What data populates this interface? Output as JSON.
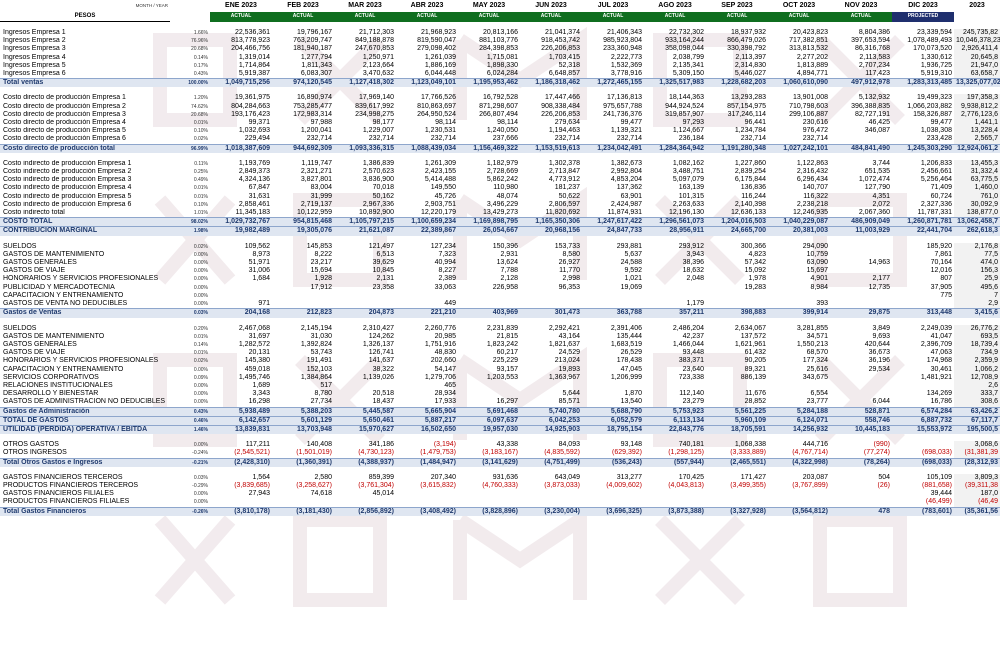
{
  "header": {
    "month_year_label": "MONTH / YEAR",
    "pesos_label": "PESOS",
    "months": [
      "ENE 2023",
      "FEB 2023",
      "MAR 2023",
      "ABR 2023",
      "MAY 2023",
      "JUN 2023",
      "JUL 2023",
      "AGO 2023",
      "SEP 2023",
      "OCT 2023",
      "NOV 2023",
      "DIC 2023",
      "2023"
    ],
    "status": [
      "ACTUAL",
      "ACTUAL",
      "ACTUAL",
      "ACTUAL",
      "ACTUAL",
      "ACTUAL",
      "ACTUAL",
      "ACTUAL",
      "ACTUAL",
      "ACTUAL",
      "ACTUAL",
      "PROJECTED",
      ""
    ]
  },
  "rows": [
    {
      "type": "sp"
    },
    {
      "label": "Ingresos Empresa 1",
      "pct": "1.66%",
      "v": [
        "22,536,361",
        "19,796,167",
        "21,712,303",
        "21,968,923",
        "20,813,166",
        "21,041,374",
        "21,406,343",
        "22,732,302",
        "18,937,932",
        "20,423,823",
        "8,804,386",
        "23,339,594",
        "245,735,82"
      ]
    },
    {
      "label": "Ingresos Empresa 2",
      "pct": "76.96%",
      "v": [
        "813,778,923",
        "763,209,747",
        "849,188,878",
        "819,590,047",
        "881,103,776",
        "918,453,742",
        "985,923,804",
        "933,164,244",
        "866,479,026",
        "717,382,851",
        "397,653,594",
        "1,078,489,493",
        "10,046,378,23"
      ]
    },
    {
      "label": "Ingresos Empresa 3",
      "pct": "20.68%",
      "v": [
        "204,466,756",
        "181,940,187",
        "247,670,853",
        "279,098,402",
        "284,398,853",
        "226,206,853",
        "233,360,948",
        "358,098,044",
        "330,398,792",
        "313,813,532",
        "86,316,768",
        "170,073,520",
        "2,926,411,4"
      ]
    },
    {
      "label": "Ingresos Empresa 4",
      "pct": "0.14%",
      "v": [
        "1,319,014",
        "1,277,794",
        "1,250,971",
        "1,261,039",
        "1,715,081",
        "1,703,415",
        "2,222,773",
        "2,038,799",
        "2,113,397",
        "2,277,202",
        "2,113,583",
        "1,330,612",
        "20,645,8"
      ]
    },
    {
      "label": "Ingresos Empresa 5",
      "pct": "0.17%",
      "v": [
        "1,714,864",
        "1,811,343",
        "2,123,664",
        "1,886,169",
        "1,898,330",
        "52,318",
        "1,532,369",
        "2,135,341",
        "2,314,830",
        "1,813,889",
        "2,707,234",
        "1,936,725",
        "21,947,0"
      ]
    },
    {
      "label": "Ingresos Empresa 6",
      "pct": "0.43%",
      "v": [
        "5,919,387",
        "6,083,307",
        "3,470,632",
        "6,044,448",
        "6,024,284",
        "6,648,857",
        "3,778,916",
        "5,309,150",
        "5,446,027",
        "4,894,771",
        "117,423",
        "5,919,310",
        "63,658,7"
      ]
    },
    {
      "label": "Total ventas",
      "pct": "100.00%",
      "cls": "total",
      "v": [
        "1,049,715,256",
        "974,120,545",
        "1,127,418,302",
        "1,123,049,101",
        "1,195,953,462",
        "1,186,318,462",
        "1,272,465,155",
        "1,325,517,983",
        "1,228,682,203",
        "1,060,610,090",
        "497,912,978",
        "1,283,313,485",
        "13,325,077,02"
      ]
    },
    {
      "type": "sp"
    },
    {
      "label": "Costo directo de producción Empresa 1",
      "pct": "1.20%",
      "v": [
        "19,361,975",
        "16,890,974",
        "17,969,140",
        "17,766,526",
        "16,792,528",
        "17,447,466",
        "17,136,813",
        "18,144,363",
        "13,293,283",
        "13,901,008",
        "5,132,932",
        "19,499,323",
        "197,358,3"
      ]
    },
    {
      "label": "Costo directo de producción Empresa 2",
      "pct": "74.62%",
      "v": [
        "804,284,663",
        "753,285,477",
        "839,617,992",
        "810,863,697",
        "871,298,607",
        "908,338,484",
        "975,657,788",
        "944,924,524",
        "857,154,975",
        "710,798,603",
        "396,388,835",
        "1,066,203,882",
        "9,938,812,2"
      ]
    },
    {
      "label": "Costo directo de producción Empresa 3",
      "pct": "20.68%",
      "v": [
        "193,176,423",
        "172,983,314",
        "234,998,275",
        "264,950,524",
        "266,807,494",
        "226,206,853",
        "241,736,376",
        "319,857,907",
        "317,246,114",
        "299,106,887",
        "82,727,191",
        "158,326,887",
        "2,776,123,6"
      ]
    },
    {
      "label": "Costo directo de producción Empresa 4",
      "pct": "0.01%",
      "v": [
        "99,371",
        "97,988",
        "98,177",
        "98,114",
        "98,114",
        "279,634",
        "99,477",
        "97,293",
        "96,441",
        "230,616",
        "46,425",
        "99,477",
        "1,441,1"
      ]
    },
    {
      "label": "Costo directo de producción Empresa 5",
      "pct": "0.10%",
      "v": [
        "1,032,693",
        "1,200,041",
        "1,229,007",
        "1,230,531",
        "1,240,050",
        "1,194,463",
        "1,139,321",
        "1,124,667",
        "1,234,784",
        "976,472",
        "346,087",
        "1,038,308",
        "13,228,4"
      ]
    },
    {
      "label": "Costo directo de producción Empresa 6",
      "pct": "0.02%",
      "v": [
        "229,494",
        "232,714",
        "232,714",
        "232,714",
        "237,666",
        "232,714",
        "232,714",
        "236,184",
        "232,714",
        "232,714",
        "",
        "233,428",
        "2,565,7"
      ]
    },
    {
      "label": "Costo directo de producción total",
      "pct": "96.99%",
      "cls": "total",
      "v": [
        "1,018,387,609",
        "944,692,309",
        "1,093,336,315",
        "1,088,439,034",
        "1,156,469,322",
        "1,153,519,613",
        "1,234,042,491",
        "1,284,364,942",
        "1,191,280,348",
        "1,027,242,101",
        "484,841,490",
        "1,245,303,290",
        "12,924,061,2"
      ]
    },
    {
      "type": "sp"
    },
    {
      "label": "Costo indirecto de producción Empresa 1",
      "pct": "0.11%",
      "v": [
        "1,193,769",
        "1,119,747",
        "1,386,839",
        "1,261,309",
        "1,182,979",
        "1,302,378",
        "1,382,673",
        "1,082,162",
        "1,227,860",
        "1,122,863",
        "3,744",
        "1,206,833",
        "13,455,3"
      ]
    },
    {
      "label": "Costo indirecto de producción Empresa 2",
      "pct": "0.25%",
      "v": [
        "2,849,373",
        "2,321,271",
        "2,570,623",
        "2,423,155",
        "2,728,669",
        "2,713,847",
        "2,992,804",
        "3,488,751",
        "2,839,254",
        "2,316,432",
        "651,535",
        "2,456,661",
        "31,332,4"
      ]
    },
    {
      "label": "Costo indirecto de producción Empresa 3",
      "pct": "0.49%",
      "v": [
        "4,324,136",
        "3,827,801",
        "3,836,900",
        "5,414,488",
        "5,862,242",
        "4,773,912",
        "4,853,204",
        "5,097,079",
        "6,175,844",
        "6,296,434",
        "1,072,474",
        "5,256,464",
        "63,775,5"
      ]
    },
    {
      "label": "Costo indirecto de producción Empresa 4",
      "pct": "0.01%",
      "v": [
        "67,847",
        "83,004",
        "70,018",
        "149,550",
        "110,980",
        "181,237",
        "137,362",
        "163,139",
        "136,836",
        "140,707",
        "127,790",
        "71,409",
        "1,460,0"
      ]
    },
    {
      "label": "Costo indirecto de producción Empresa 5",
      "pct": "0.01%",
      "v": [
        "31,631",
        "31,999",
        "50,162",
        "45,726",
        "48,074",
        "50,622",
        "63,901",
        "101,315",
        "116,244",
        "116,322",
        "4,351",
        "60,724",
        "761,0"
      ]
    },
    {
      "label": "Costo indirecto de producción Empresa 6",
      "pct": "0.10%",
      "v": [
        "2,858,461",
        "2,719,137",
        "2,967,336",
        "2,903,751",
        "3,496,229",
        "2,806,597",
        "2,424,987",
        "2,263,633",
        "2,140,398",
        "2,238,218",
        "2,072",
        "2,327,336",
        "30,092,9"
      ]
    },
    {
      "label": "Costo indirecto total",
      "pct": "1.01%",
      "v": [
        "11,345,183",
        "10,122,959",
        "10,892,900",
        "12,220,179",
        "13,429,273",
        "11,820,692",
        "11,874,931",
        "12,196,130",
        "12,636,133",
        "12,246,935",
        "2,067,360",
        "11,787,331",
        "138,877,0"
      ]
    },
    {
      "label": "COSTO TOTAL",
      "pct": "98.02%",
      "cls": "total",
      "v": [
        "1,029,732,767",
        "954,815,468",
        "1,105,797,215",
        "1,100,659,234",
        "1,169,898,795",
        "1,165,350,306",
        "1,247,617,422",
        "1,296,561,073",
        "1,204,016,503",
        "1,040,229,087",
        "486,909,049",
        "1,260,871,781",
        "13,062,458,7"
      ]
    },
    {
      "label": "CONTRIBUCIÓN MARGINAL",
      "pct": "1.98%",
      "cls": "total",
      "v": [
        "19,982,489",
        "19,305,076",
        "21,621,087",
        "22,389,867",
        "26,054,667",
        "20,968,156",
        "24,847,733",
        "28,956,911",
        "24,665,700",
        "20,381,003",
        "11,003,929",
        "22,441,704",
        "262,618,3"
      ]
    },
    {
      "type": "sp"
    },
    {
      "label": "SUELDOS",
      "pct": "0.02%",
      "v": [
        "109,562",
        "145,853",
        "121,497",
        "127,234",
        "150,396",
        "153,733",
        "293,881",
        "293,912",
        "300,366",
        "294,090",
        "",
        "185,920",
        "2,176,8"
      ]
    },
    {
      "label": "GASTOS DE MANTENIMIENTO",
      "pct": "0.00%",
      "v": [
        "8,973",
        "8,222",
        "6,513",
        "7,323",
        "2,931",
        "8,580",
        "5,637",
        "3,943",
        "4,823",
        "10,759",
        "",
        "7,861",
        "77,5"
      ]
    },
    {
      "label": "GASTOS GENERALES",
      "pct": "0.00%",
      "v": [
        "51,971",
        "23,217",
        "39,629",
        "40,994",
        "13,624",
        "26,927",
        "24,588",
        "38,396",
        "57,342",
        "63,090",
        "14,963",
        "70,164",
        "474,0"
      ]
    },
    {
      "label": "GASTOS DE VIAJE",
      "pct": "0.00%",
      "v": [
        "31,006",
        "15,694",
        "10,845",
        "8,227",
        "7,788",
        "11,770",
        "9,592",
        "18,632",
        "15,092",
        "15,697",
        "",
        "12,016",
        "156,3"
      ]
    },
    {
      "label": "HONORARIOS Y SERVICIOS PROFESIONALES",
      "pct": "0.00%",
      "v": [
        "1,684",
        "1,928",
        "2,131",
        "2,389",
        "2,128",
        "2,998",
        "1,021",
        "2,048",
        "1,978",
        "4,901",
        "2,177",
        "807",
        "25,9"
      ]
    },
    {
      "label": "PUBLICIDAD Y MERCADOTECNIA",
      "pct": "0.00%",
      "v": [
        "",
        "17,912",
        "23,358",
        "33,063",
        "226,958",
        "96,353",
        "19,069",
        "",
        "19,283",
        "8,984",
        "12,735",
        "37,905",
        "495,6"
      ]
    },
    {
      "label": "CAPACITACIÓN Y ENTRENAMIENTO",
      "pct": "0.00%",
      "v": [
        "",
        "",
        "",
        "",
        "",
        "",
        "",
        "",
        "",
        "",
        "",
        "775",
        "7"
      ]
    },
    {
      "label": "GASTOS DE VENTA NO DEDUCIBLES",
      "pct": "0.00%",
      "v": [
        "971",
        "",
        "",
        "449",
        "",
        "",
        "",
        "1,179",
        "",
        "393",
        "",
        "",
        "2,9"
      ]
    },
    {
      "label": "Gastos de Ventas",
      "pct": "0.03%",
      "cls": "total",
      "v": [
        "204,168",
        "212,823",
        "204,873",
        "221,210",
        "403,969",
        "301,473",
        "363,788",
        "357,211",
        "398,883",
        "399,914",
        "29,875",
        "313,448",
        "3,415,6"
      ]
    },
    {
      "type": "sp"
    },
    {
      "label": "SUELDOS",
      "pct": "0.20%",
      "v": [
        "2,467,068",
        "2,145,194",
        "2,310,427",
        "2,260,776",
        "2,231,839",
        "2,292,421",
        "2,391,406",
        "2,486,204",
        "2,634,067",
        "3,281,855",
        "3,849",
        "2,249,039",
        "26,776,2"
      ]
    },
    {
      "label": "GASTOS DE MANTENIMIENTO",
      "pct": "0.01%",
      "v": [
        "31,697",
        "31,030",
        "124,262",
        "20,985",
        "21,815",
        "43,164",
        "135,444",
        "42,237",
        "137,572",
        "34,571",
        "9,693",
        "41,047",
        "693,5"
      ]
    },
    {
      "label": "GASTOS GENERALES",
      "pct": "0.14%",
      "v": [
        "1,282,572",
        "1,392,824",
        "1,326,137",
        "1,751,916",
        "1,823,242",
        "1,821,637",
        "1,683,519",
        "1,466,044",
        "1,621,961",
        "1,550,213",
        "420,644",
        "2,396,709",
        "18,739,4"
      ]
    },
    {
      "label": "GASTOS DE VIAJE",
      "pct": "0.01%",
      "v": [
        "20,131",
        "53,743",
        "126,741",
        "48,830",
        "60,217",
        "24,529",
        "26,529",
        "93,448",
        "61,432",
        "68,570",
        "36,673",
        "47,063",
        "734,9"
      ]
    },
    {
      "label": "HONORARIOS Y SERVICIOS PROFESIONALES",
      "pct": "0.02%",
      "v": [
        "145,380",
        "191,491",
        "141,637",
        "202,660",
        "225,229",
        "213,024",
        "178,438",
        "383,371",
        "90,205",
        "177,324",
        "36,196",
        "174,968",
        "2,359,9"
      ]
    },
    {
      "label": "CAPACITACIÓN Y ENTRENAMIENTO",
      "pct": "0.00%",
      "v": [
        "459,018",
        "152,103",
        "38,322",
        "54,147",
        "93,157",
        "19,893",
        "47,045",
        "23,640",
        "89,321",
        "25,616",
        "29,534",
        "30,461",
        "1,066,2"
      ]
    },
    {
      "label": "SERVICIOS CORPORATIVOS",
      "pct": "0.09%",
      "v": [
        "1,495,746",
        "1,384,864",
        "1,139,026",
        "1,279,706",
        "1,203,553",
        "1,363,967",
        "1,206,999",
        "723,338",
        "886,139",
        "343,675",
        "",
        "1,481,921",
        "12,708,9"
      ]
    },
    {
      "label": "RELACIONES INSTITUCIONALES",
      "pct": "0.00%",
      "v": [
        "1,689",
        "517",
        "",
        "465",
        "",
        "",
        "",
        "",
        "",
        "",
        "",
        "",
        "2,6"
      ]
    },
    {
      "label": "DESARROLLO Y BIENESTAR",
      "pct": "0.00%",
      "v": [
        "3,343",
        "8,780",
        "20,518",
        "28,934",
        "",
        "5,644",
        "1,870",
        "112,140",
        "11,676",
        "6,554",
        "",
        "134,269",
        "333,7"
      ]
    },
    {
      "label": "GASTOS DE ADMINISTRACIÓN NO DEDUCIBLES",
      "pct": "0.00%",
      "v": [
        "16,298",
        "27,734",
        "18,437",
        "17,933",
        "16,297",
        "85,571",
        "13,540",
        "23,279",
        "28,852",
        "23,777",
        "6,044",
        "16,786",
        "308,6"
      ]
    },
    {
      "label": "Gastos de Administración",
      "pct": "0.43%",
      "cls": "total",
      "v": [
        "5,938,489",
        "5,388,203",
        "5,445,587",
        "5,665,904",
        "5,691,468",
        "5,740,780",
        "5,688,790",
        "5,753,923",
        "5,561,225",
        "5,284,188",
        "528,871",
        "6,574,284",
        "63,426,2"
      ]
    },
    {
      "label": "TOTAL DE GASTOS",
      "pct": "0.46%",
      "cls": "total",
      "v": [
        "6,142,657",
        "5,601,129",
        "5,650,461",
        "5,887,217",
        "6,097,637",
        "6,042,253",
        "6,052,579",
        "6,113,134",
        "5,960,109",
        "6,124,071",
        "558,746",
        "6,887,732",
        "67,117,7"
      ]
    },
    {
      "label": "UTILIDAD (PÉRDIDA) OPERATIVA / EBITDA",
      "pct": "1.46%",
      "cls": "total",
      "v": [
        "13,839,831",
        "13,703,948",
        "15,970,627",
        "16,502,650",
        "19,957,030",
        "14,925,903",
        "18,795,154",
        "22,843,776",
        "18,705,591",
        "14,256,932",
        "10,445,183",
        "15,553,972",
        "195,500,5"
      ]
    },
    {
      "type": "sp"
    },
    {
      "label": "OTROS GASTOS",
      "pct": "0.00%",
      "v": [
        "117,211",
        "140,408",
        "341,186",
        "(3,194)",
        "43,338",
        "84,093",
        "93,148",
        "740,181",
        "1,068,338",
        "444,716",
        "(990)",
        "",
        "3,068,6"
      ]
    },
    {
      "label": "OTROS INGRESOS",
      "pct": "-0.24%",
      "v": [
        "(2,545,521)",
        "(1,501,019)",
        "(4,730,123)",
        "(1,479,753)",
        "(3,183,167)",
        "(4,835,592)",
        "(629,392)",
        "(1,298,125)",
        "(3,333,889)",
        "(4,767,714)",
        "(77,274)",
        "(698,033)",
        "(31,381,39"
      ]
    },
    {
      "label": "Total Otros Gastos e Ingresos",
      "pct": "-0.21%",
      "cls": "total",
      "v": [
        "(2,428,310)",
        "(1,360,391)",
        "(4,388,937)",
        "(1,484,947)",
        "(3,141,629)",
        "(4,751,499)",
        "(536,243)",
        "(557,944)",
        "(2,465,551)",
        "(4,322,998)",
        "(78,264)",
        "(698,033)",
        "(28,312,93"
      ]
    },
    {
      "type": "sp"
    },
    {
      "label": "GASTOS FINANCIEROS TERCEROS",
      "pct": "0.03%",
      "v": [
        "1,564",
        "2,580",
        "859,399",
        "207,340",
        "931,636",
        "643,049",
        "313,277",
        "170,425",
        "171,427",
        "203,087",
        "504",
        "105,109",
        "3,809,3"
      ]
    },
    {
      "label": "PRODUCTOS FINANCIEROS TERCEROS",
      "pct": "-0.29%",
      "v": [
        "(3,839,685)",
        "(3,258,627)",
        "(3,761,304)",
        "(3,615,832)",
        "(4,760,333)",
        "(3,873,033)",
        "(4,009,602)",
        "(4,043,813)",
        "(3,499,355)",
        "(3,767,899)",
        "(26)",
        "(881,658)",
        "(39,311,38"
      ]
    },
    {
      "label": "GASTOS FINANCIEROS FILIALES",
      "pct": "0.00%",
      "v": [
        "27,943",
        "74,618",
        "45,014",
        "",
        "",
        "",
        "",
        "",
        "",
        "",
        "",
        "39,444",
        "187,0"
      ]
    },
    {
      "label": "PRODUCTOS FINANCIEROS FILIALES",
      "pct": "0.00%",
      "v": [
        "",
        "",
        "",
        "",
        "",
        "",
        "",
        "",
        "",
        "",
        "",
        "(46,499)",
        "(46,49"
      ]
    },
    {
      "label": "Total Gastos Financieros",
      "pct": "-0.26%",
      "cls": "total",
      "v": [
        "(3,810,178)",
        "(3,181,430)",
        "(2,856,892)",
        "(3,408,492)",
        "(3,828,896)",
        "(3,230,004)",
        "(3,696,325)",
        "(3,873,388)",
        "(3,327,928)",
        "(3,564,812)",
        "478",
        "(783,601)",
        "(35,361,56"
      ]
    }
  ]
}
